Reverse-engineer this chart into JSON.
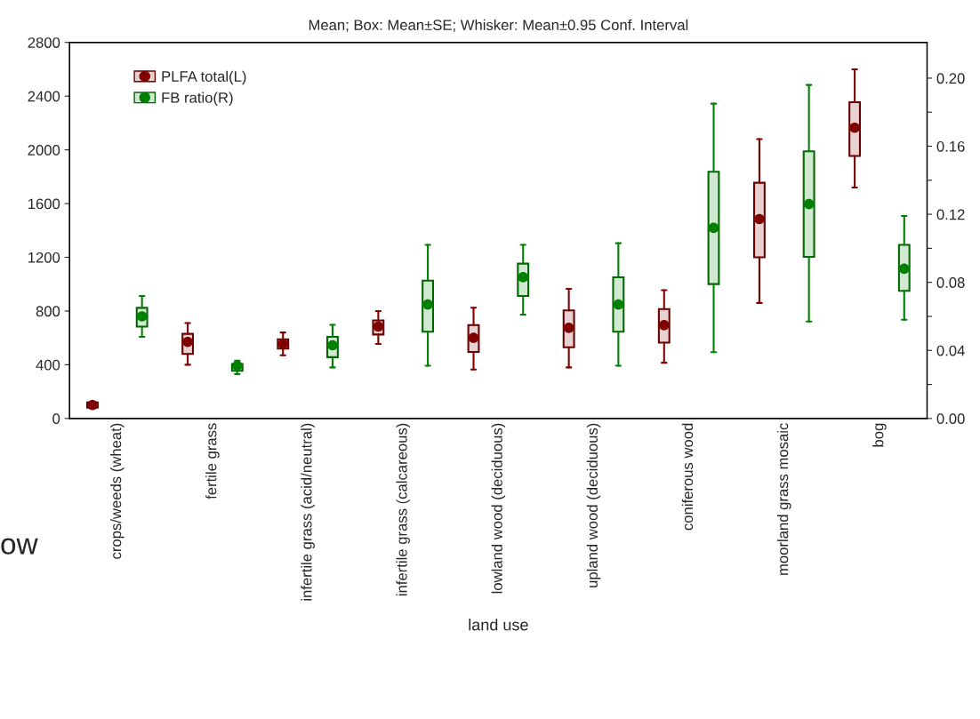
{
  "chart_data": {
    "type": "box",
    "title": "Mean; Box: Mean±SE; Whisker: Mean±0.95 Conf. Interval",
    "xlabel": "land use",
    "categories": [
      "crops/weeds (wheat)",
      "fertile grass",
      "infertile grass (acid/neutral)",
      "infertile grass (calcareous)",
      "lowland wood (deciduous)",
      "upland wood (deciduous)",
      "coniferous wood",
      "moorland grass mosaic",
      "bog"
    ],
    "series": [
      {
        "name": "PLFA total(L)",
        "color": "#800000",
        "boxes": [
          {
            "low": 75,
            "q1": 80,
            "median": 100,
            "q3": 120,
            "high": 125
          },
          {
            "low": 400,
            "q1": 480,
            "median": 570,
            "q3": 630,
            "high": 710
          },
          {
            "low": 470,
            "q1": 520,
            "median": 555,
            "q3": 590,
            "high": 640
          },
          {
            "low": 555,
            "q1": 625,
            "median": 685,
            "q3": 730,
            "high": 800
          },
          {
            "low": 365,
            "q1": 495,
            "median": 600,
            "q3": 695,
            "high": 825
          },
          {
            "low": 380,
            "q1": 530,
            "median": 675,
            "q3": 805,
            "high": 965
          },
          {
            "low": 415,
            "q1": 565,
            "median": 695,
            "q3": 815,
            "high": 955
          },
          {
            "low": 860,
            "q1": 1200,
            "median": 1485,
            "q3": 1755,
            "high": 2080
          },
          {
            "low": 1720,
            "q1": 1955,
            "median": 2165,
            "q3": 2355,
            "high": 2600
          }
        ]
      },
      {
        "name": "FB ratio(R)",
        "color": "#008000",
        "axis": "y2",
        "boxes": [
          {
            "low": 0.048,
            "q1": 0.054,
            "median": 0.06,
            "q3": 0.065,
            "high": 0.072
          },
          {
            "low": 0.026,
            "q1": 0.028,
            "median": 0.031,
            "q3": 0.032,
            "high": 0.034
          },
          {
            "low": 0.03,
            "q1": 0.036,
            "median": 0.043,
            "q3": 0.048,
            "high": 0.055
          },
          {
            "low": 0.031,
            "q1": 0.051,
            "median": 0.067,
            "q3": 0.081,
            "high": 0.102
          },
          {
            "low": 0.061,
            "q1": 0.072,
            "median": 0.083,
            "q3": 0.091,
            "high": 0.102
          },
          {
            "low": 0.031,
            "q1": 0.051,
            "median": 0.067,
            "q3": 0.083,
            "high": 0.103
          },
          {
            "low": 0.039,
            "q1": 0.079,
            "median": 0.112,
            "q3": 0.145,
            "high": 0.185
          },
          {
            "low": 0.057,
            "q1": 0.095,
            "median": 0.126,
            "q3": 0.157,
            "high": 0.196
          },
          {
            "low": 0.058,
            "q1": 0.075,
            "median": 0.088,
            "q3": 0.102,
            "high": 0.119
          }
        ]
      }
    ],
    "ylim": [
      0,
      2800
    ],
    "yticks": [
      0,
      400,
      800,
      1200,
      1600,
      2000,
      2400,
      2800
    ],
    "y2lim": [
      0,
      0.221
    ],
    "y2ticks": [
      "0.00",
      {
        "value": 0.02,
        "label": null
      },
      {
        "value": 0.04,
        "label": "0.04"
      },
      {
        "value": 0.06,
        "label": null
      },
      {
        "value": 0.08,
        "label": "0.08"
      },
      {
        "value": 0.1,
        "label": null
      },
      {
        "value": 0.12,
        "label": "0.12"
      },
      {
        "value": 0.14,
        "label": null
      },
      {
        "value": 0.16,
        "label": "0.16"
      },
      {
        "value": 0.18,
        "label": null
      },
      {
        "value": 0.2,
        "label": "0.20"
      }
    ],
    "marker": "circle",
    "grid": false,
    "legend": "top left",
    "annotations": [
      "ow"
    ]
  }
}
